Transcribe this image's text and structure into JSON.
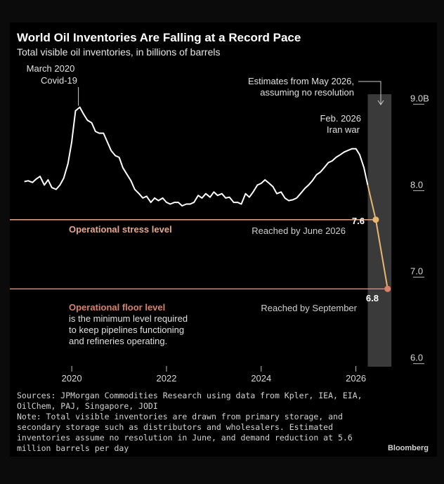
{
  "title": "World Oil Inventories Are Falling at a Record Pace",
  "subtitle": "Total visible oil inventories, in billions of barrels",
  "annotations": {
    "covid_line1": "March 2020",
    "covid_line2": "Covid-19",
    "estimates_line1": "Estimates from May 2026,",
    "estimates_line2": "assuming no resolution",
    "iran_line1": "Feb. 2026",
    "iran_line2": "Iran war",
    "stress_label": "Operational stress level",
    "stress_reached": "Reached by June 2026",
    "stress_value": "7.6",
    "floor_label": "Operational floor level",
    "floor_desc_1": "is the minimum level required",
    "floor_desc_2": "to keep pipelines functioning",
    "floor_desc_3": "and refineries operating.",
    "floor_reached": "Reached by September",
    "floor_value": "6.8"
  },
  "sources": {
    "line1": "Sources: JPMorgan Commodities Research using data from Kpler, IEA, EIA,",
    "line2": "OilChem, PAJ, Singapore, JODI",
    "line3": "Note: Total visible inventories are drawn from primary storage, and",
    "line4": "secondary storage such as distributors and wholesalers. Estimated",
    "line5": "inventories assume no resolution in June, and demand reduction at 5.6",
    "line6": "million barrels per day"
  },
  "brand": "Bloomberg",
  "colors": {
    "background": "#000000",
    "line": "#ffffff",
    "stress_line": "#e8a78a",
    "floor_line": "#d9826a",
    "forecast": "#e8b770",
    "forecast_band": "#3a3a3a",
    "axis_text": "#d8d8d8"
  },
  "chart_data": {
    "type": "line",
    "title": "World Oil Inventories Are Falling at a Record Pace",
    "subtitle": "Total visible oil inventories, in billions of barrels",
    "xlabel": "",
    "ylabel": "",
    "xlim": [
      2018.9,
      2027.0
    ],
    "ylim": [
      5.9,
      9.1
    ],
    "x_ticks": [
      2020,
      2022,
      2024,
      2026
    ],
    "x_tick_labels": [
      "2020",
      "2022",
      "2024",
      "2026"
    ],
    "y_ticks": [
      6.0,
      7.0,
      8.0,
      9.0
    ],
    "y_tick_labels": [
      "6.0",
      "7.0",
      "8.0",
      "9.0B"
    ],
    "grid": false,
    "forecast_range": [
      2026.25,
      2026.75
    ],
    "reference_lines": [
      {
        "name": "Operational stress level",
        "value": 7.6
      },
      {
        "name": "Operational floor level",
        "value": 6.8
      }
    ],
    "series": [
      {
        "x": [
          2019.0,
          2019.08,
          2019.17,
          2019.25,
          2019.33,
          2019.42,
          2019.5,
          2019.58,
          2019.67,
          2019.75,
          2019.83,
          2019.92,
          2020.0,
          2020.08,
          2020.17,
          2020.25,
          2020.33,
          2020.42,
          2020.5,
          2020.58,
          2020.67,
          2020.75,
          2020.83,
          2020.92,
          2021.0,
          2021.08,
          2021.17,
          2021.25,
          2021.33,
          2021.42,
          2021.5,
          2021.58,
          2021.67,
          2021.75,
          2021.83,
          2021.92,
          2022.0,
          2022.08,
          2022.17,
          2022.25,
          2022.33,
          2022.42,
          2022.5,
          2022.58,
          2022.67,
          2022.75,
          2022.83,
          2022.92,
          2023.0,
          2023.08,
          2023.17,
          2023.25,
          2023.33,
          2023.42,
          2023.5,
          2023.58,
          2023.67,
          2023.75,
          2023.83,
          2023.92,
          2024.0,
          2024.08,
          2024.17,
          2024.25,
          2024.33,
          2024.42,
          2024.5,
          2024.58,
          2024.67,
          2024.75,
          2024.83,
          2024.92,
          2025.0,
          2025.08,
          2025.17,
          2025.25,
          2025.33,
          2025.42,
          2025.5,
          2025.58,
          2025.67,
          2025.75,
          2025.83,
          2025.92,
          2026.0,
          2026.08,
          2026.17,
          2026.25
        ],
        "values": [
          8.04,
          8.05,
          8.03,
          8.07,
          8.1,
          8.0,
          8.06,
          7.97,
          7.95,
          8.0,
          8.08,
          8.25,
          8.5,
          8.86,
          8.9,
          8.82,
          8.75,
          8.72,
          8.62,
          8.6,
          8.6,
          8.5,
          8.4,
          8.34,
          8.32,
          8.2,
          8.12,
          8.05,
          7.95,
          7.9,
          7.85,
          7.87,
          7.8,
          7.85,
          7.82,
          7.85,
          7.8,
          7.78,
          7.8,
          7.8,
          7.76,
          7.78,
          7.78,
          7.8,
          7.88,
          7.85,
          7.9,
          7.86,
          7.92,
          7.88,
          7.9,
          7.85,
          7.86,
          7.8,
          7.8,
          7.78,
          7.9,
          7.86,
          7.92,
          8.0,
          8.02,
          8.06,
          8.02,
          7.98,
          7.9,
          7.92,
          7.85,
          7.82,
          7.83,
          7.85,
          7.9,
          7.96,
          8.0,
          8.05,
          8.12,
          8.15,
          8.2,
          8.26,
          8.28,
          8.32,
          8.35,
          8.38,
          8.4,
          8.42,
          8.42,
          8.35,
          8.2,
          8.0
        ]
      },
      {
        "x": [
          2026.25,
          2026.42,
          2026.67
        ],
        "values": [
          8.0,
          7.6,
          6.8
        ]
      }
    ]
  }
}
